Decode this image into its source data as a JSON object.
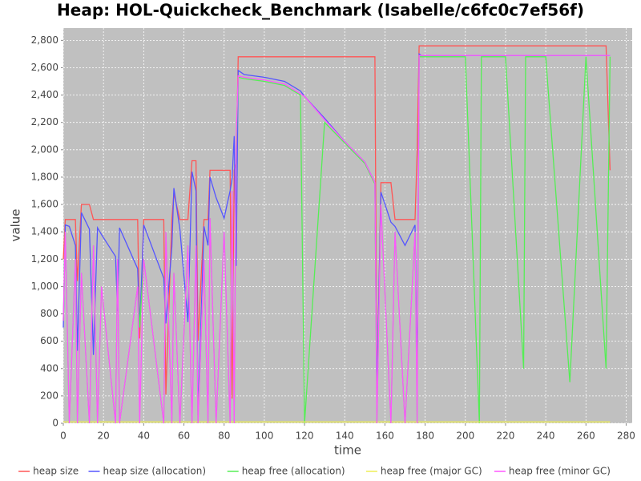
{
  "chart_data": {
    "type": "line",
    "title": "Heap: HOL-Quickcheck_Benchmark (Isabelle/c6fc0c7ef56f)",
    "x_label": "time",
    "y_label": "value",
    "x": [
      0,
      1,
      3,
      6,
      7,
      9,
      13,
      15,
      17,
      19,
      26,
      27,
      28,
      37,
      38,
      40,
      50,
      51,
      54,
      55,
      58,
      62,
      64,
      66,
      67,
      70,
      72,
      73,
      76,
      80,
      83,
      84,
      85,
      86,
      87,
      90,
      100,
      110,
      118,
      120,
      130,
      140,
      150,
      155,
      156,
      158,
      163,
      165,
      170,
      175,
      176,
      177,
      178,
      200,
      207,
      208,
      220,
      229,
      230,
      240,
      252,
      260,
      270,
      272
    ],
    "series": [
      {
        "name": "heap size",
        "color": "#ff5555",
        "values": [
          1200,
          1490,
          1490,
          1490,
          1040,
          1600,
          1600,
          1490,
          1490,
          1490,
          1490,
          1490,
          1490,
          1490,
          620,
          1490,
          1490,
          210,
          1490,
          1680,
          1490,
          1490,
          1920,
          1920,
          600,
          1490,
          1490,
          1850,
          1850,
          1850,
          1850,
          180,
          1850,
          1900,
          2680,
          2680,
          2680,
          2680,
          2680,
          2680,
          2680,
          2680,
          2680,
          2680,
          200,
          1760,
          1760,
          1490,
          1490,
          1490,
          1980,
          2760,
          2760,
          2760,
          2760,
          2760,
          2760,
          2760,
          2760,
          2760,
          2760,
          2760,
          2760,
          1850
        ]
      },
      {
        "name": "heap size (allocation)",
        "color": "#5555ff",
        "values": [
          700,
          1450,
          1440,
          1300,
          530,
          1540,
          1420,
          500,
          1430,
          1380,
          1220,
          820,
          1430,
          1130,
          700,
          1450,
          1060,
          730,
          1290,
          1720,
          1420,
          740,
          1840,
          1700,
          60,
          1440,
          1300,
          1800,
          1650,
          1500,
          1700,
          1790,
          2100,
          1150,
          2580,
          2550,
          2530,
          2500,
          2430,
          2390,
          2230,
          2060,
          1910,
          1760,
          210,
          1690,
          1470,
          1440,
          1300,
          1450,
          270,
          2700,
          2690,
          2690,
          2690,
          2690,
          2690,
          2690,
          2690,
          2690,
          2690,
          2690,
          2690,
          2690
        ]
      },
      {
        "name": "heap free (allocation)",
        "color": "#55ee55",
        "values": [
          750,
          1400,
          0,
          1200,
          0,
          1100,
          0,
          1300,
          0,
          1000,
          0,
          1200,
          0,
          1000,
          700,
          1200,
          0,
          1400,
          0,
          1100,
          0,
          1300,
          0,
          1300,
          0,
          1200,
          0,
          1500,
          0,
          1400,
          0,
          1700,
          0,
          2000,
          2530,
          2520,
          2500,
          2470,
          2400,
          0,
          2200,
          2050,
          1900,
          1750,
          0,
          1600,
          0,
          1400,
          0,
          1400,
          0,
          2680,
          2680,
          2680,
          0,
          2680,
          2680,
          400,
          2680,
          2680,
          300,
          2680,
          400,
          2680
        ]
      },
      {
        "name": "heap free (major GC)",
        "color": "#eeee55",
        "values": [
          10,
          10,
          10,
          10,
          10,
          10,
          10,
          10,
          10,
          10,
          10,
          10,
          10,
          10,
          10,
          10,
          10,
          10,
          10,
          10,
          10,
          10,
          10,
          10,
          10,
          10,
          10,
          10,
          10,
          10,
          10,
          10,
          10,
          10,
          10,
          10,
          10,
          10,
          10,
          10,
          10,
          10,
          10,
          10,
          10,
          10,
          10,
          10,
          10,
          10,
          10,
          10,
          10,
          10,
          10,
          10,
          10,
          10,
          10,
          10,
          10,
          10,
          10,
          10
        ]
      },
      {
        "name": "heap free (minor GC)",
        "color": "#ff55ff",
        "values": [
          750,
          1400,
          0,
          1200,
          0,
          1100,
          0,
          1300,
          0,
          1000,
          0,
          1200,
          0,
          1000,
          0,
          1200,
          0,
          1400,
          0,
          1100,
          0,
          1300,
          0,
          1300,
          0,
          1200,
          0,
          1500,
          0,
          1400,
          0,
          1700,
          0,
          2100,
          2540,
          2530,
          2510,
          2480,
          2410,
          2390,
          2220,
          2060,
          1910,
          1760,
          0,
          1600,
          0,
          1400,
          0,
          1400,
          0,
          2690,
          2690,
          2690,
          2690,
          2690,
          2690,
          2690,
          2690,
          2690,
          2690,
          2690,
          2690,
          2690
        ]
      }
    ],
    "xlim": [
      0,
      283
    ],
    "ylim": [
      0,
      2890
    ],
    "xticks": [
      0,
      20,
      40,
      60,
      80,
      100,
      120,
      140,
      160,
      180,
      200,
      220,
      240,
      260,
      280
    ],
    "yticks": [
      0,
      200,
      400,
      600,
      800,
      {
        "value": 1000,
        "label": "1,000"
      },
      {
        "value": 1200,
        "label": "1,200"
      },
      {
        "value": 1400,
        "label": "1,400"
      },
      {
        "value": 1600,
        "label": "1,600"
      },
      {
        "value": 1800,
        "label": "1,800"
      },
      {
        "value": 2000,
        "label": "2,000"
      },
      {
        "value": 2200,
        "label": "2,200"
      },
      {
        "value": 2400,
        "label": "2,400"
      },
      {
        "value": 2600,
        "label": "2,600"
      },
      {
        "value": 2800,
        "label": "2,800"
      }
    ],
    "grid": true,
    "legend": "bottom"
  }
}
